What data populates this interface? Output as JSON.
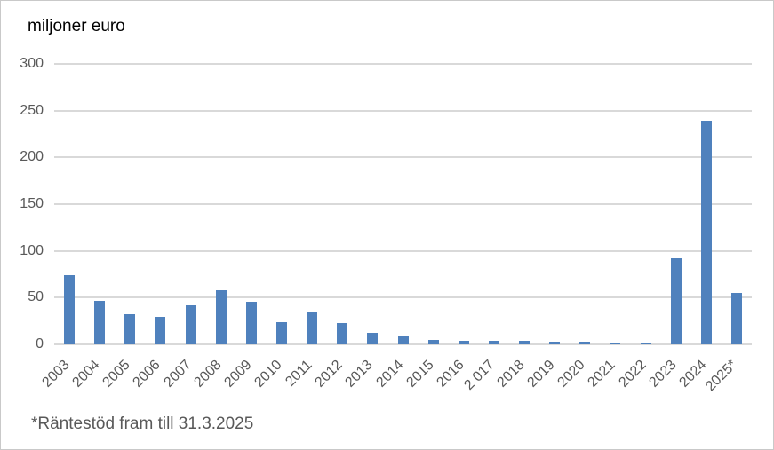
{
  "chart": {
    "title": "miljoner euro",
    "footnote": "*Räntestöd fram till 31.3.2025"
  },
  "colors": {
    "bar": "#4F81BD",
    "gridline": "#D9D9D9",
    "axis_text": "#595959",
    "title_text": "#000000",
    "frame_border": "#C9C9C9"
  },
  "chart_data": {
    "type": "bar",
    "title": "miljoner euro",
    "categories": [
      "2003",
      "2004",
      "2005",
      "2006",
      "2007",
      "2008",
      "2009",
      "2010",
      "2011",
      "2012",
      "2013",
      "2014",
      "2015",
      "2016",
      "2 017",
      "2018",
      "2019",
      "2020",
      "2021",
      "2022",
      "2023",
      "2024",
      "2025*"
    ],
    "values": [
      74,
      47,
      32,
      29,
      42,
      58,
      46,
      24,
      35,
      23,
      12,
      9,
      4.5,
      3.5,
      3.5,
      3.5,
      3,
      3,
      2,
      2,
      92,
      239,
      55
    ],
    "xlabel": "",
    "ylabel": "miljoner euro",
    "ylim": [
      0,
      300
    ],
    "yticks": [
      0,
      50,
      100,
      150,
      200,
      250,
      300
    ],
    "grid": true,
    "legend": false,
    "footnote": "*Räntestöd fram till 31.3.2025",
    "bar_color": "#4F81BD"
  }
}
